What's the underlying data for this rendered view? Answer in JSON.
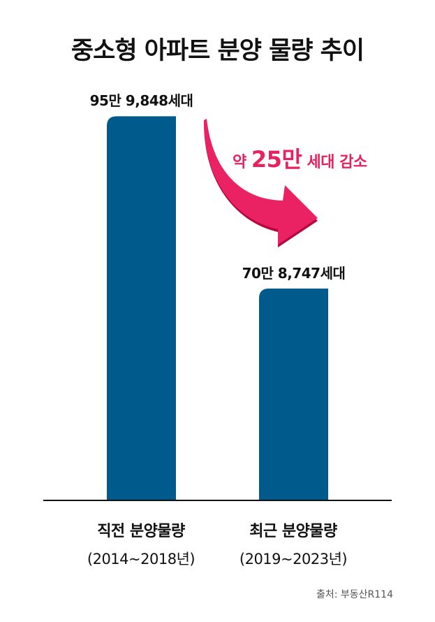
{
  "chart_data": {
    "type": "bar",
    "title": "중소형 아파트 분양 물량 추이",
    "categories": [
      {
        "name": "직전 분양물량",
        "period": "(2014~2018년)"
      },
      {
        "name": "최근 분양물량",
        "period": "(2019~2023년)"
      }
    ],
    "values": [
      959848,
      708747
    ],
    "data_labels": [
      "95만 9,848세대",
      "70만 8,747세대"
    ],
    "unit": "세대",
    "ylim": [
      400000,
      1000000
    ],
    "grid": false,
    "bar_color": "#005a8c",
    "annotation": {
      "prefix": "약 ",
      "value": "25만",
      "suffix": " 세대 감소",
      "color": "#e8215f"
    },
    "source": "출처: 부동산R114"
  }
}
